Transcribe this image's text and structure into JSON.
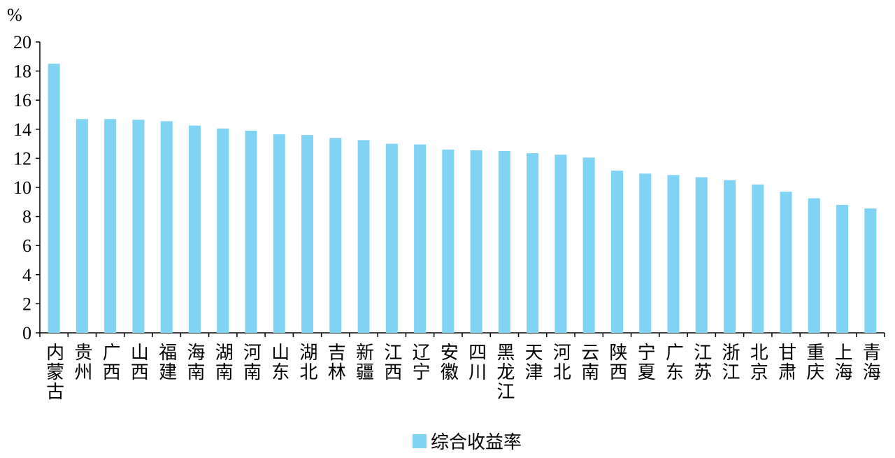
{
  "chart_data": {
    "type": "bar",
    "ylabel": "%",
    "categories": [
      "内蒙古",
      "贵州",
      "广西",
      "山西",
      "福建",
      "海南",
      "湖南",
      "河南",
      "山东",
      "湖北",
      "吉林",
      "新疆",
      "江西",
      "辽宁",
      "安徽",
      "四川",
      "黑龙江",
      "天津",
      "河北",
      "云南",
      "陕西",
      "宁夏",
      "广东",
      "江苏",
      "浙江",
      "北京",
      "甘肃",
      "重庆",
      "上海",
      "青海"
    ],
    "series": [
      {
        "name": "综合收益率",
        "color": "#80d3f3",
        "values": [
          18.5,
          14.7,
          14.7,
          14.65,
          14.55,
          14.25,
          14.05,
          13.9,
          13.65,
          13.6,
          13.4,
          13.25,
          13.0,
          12.95,
          12.6,
          12.55,
          12.5,
          12.35,
          12.25,
          12.05,
          11.15,
          10.95,
          10.85,
          10.7,
          10.5,
          10.2,
          9.7,
          9.25,
          8.8,
          8.55
        ]
      }
    ],
    "ylim": [
      0,
      20
    ],
    "yticks": [
      0,
      2,
      4,
      6,
      8,
      10,
      12,
      14,
      16,
      18,
      20
    ],
    "grid": false
  }
}
